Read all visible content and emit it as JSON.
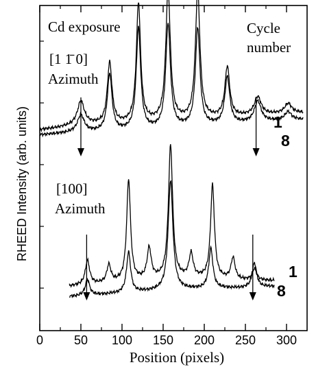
{
  "chart_data": {
    "type": "line",
    "xlabel": "Position (pixels)",
    "ylabel": "RHEED Intensity (arb. units)",
    "xlim": [
      0,
      325
    ],
    "xticks": [
      0,
      50,
      100,
      150,
      200,
      250,
      300
    ],
    "grid": false,
    "y_tick_labels_shown": false,
    "annotations": {
      "top_title": "Cd exposure",
      "top_azimuth_index": "[1 1̄ 0]",
      "top_azimuth_word": "Azimuth",
      "bottom_azimuth_index": "[100]",
      "bottom_azimuth_word": "Azimuth",
      "cycle_header_1": "Cycle",
      "cycle_header_2": "number",
      "top_label_1": "1",
      "top_label_8": "8",
      "bottom_label_1": "1",
      "bottom_label_8": "8"
    },
    "panels": [
      {
        "name": "[1 1̄ 0] Azimuth",
        "baseline_x": [
          0,
          20,
          40,
          60,
          80,
          100,
          120,
          140,
          160,
          180,
          200,
          220,
          240,
          260,
          280,
          300,
          320
        ],
        "baseline_1": [
          0.37,
          0.4,
          0.44,
          0.46,
          0.46,
          0.47,
          0.49,
          0.51,
          0.53,
          0.54,
          0.56,
          0.58,
          0.6,
          0.62,
          0.64,
          0.66,
          0.67
        ],
        "baseline_8": [
          0.28,
          0.3,
          0.32,
          0.33,
          0.34,
          0.35,
          0.37,
          0.38,
          0.4,
          0.42,
          0.44,
          0.46,
          0.48,
          0.5,
          0.52,
          0.54,
          0.55
        ],
        "peaks_1": [
          {
            "x": 50,
            "height": 0.42,
            "width": 5
          },
          {
            "x": 85,
            "height": 1.08,
            "width": 3.4
          },
          {
            "x": 120,
            "height": 2.1,
            "width": 3.1
          },
          {
            "x": 156,
            "height": 2.3,
            "width": 3.3
          },
          {
            "x": 192,
            "height": 2.26,
            "width": 3.3
          },
          {
            "x": 228,
            "height": 0.88,
            "width": 3.5
          },
          {
            "x": 265,
            "height": 0.32,
            "width": 5
          },
          {
            "x": 302,
            "height": 0.17,
            "width": 5
          }
        ],
        "peaks_8": [
          {
            "x": 50,
            "height": 0.3,
            "width": 5
          },
          {
            "x": 85,
            "height": 1.0,
            "width": 3.4
          },
          {
            "x": 120,
            "height": 1.78,
            "width": 3.2
          },
          {
            "x": 156,
            "height": 1.82,
            "width": 3.4
          },
          {
            "x": 192,
            "height": 1.72,
            "width": 3.3
          },
          {
            "x": 228,
            "height": 0.82,
            "width": 3.6
          },
          {
            "x": 265,
            "height": 0.36,
            "width": 5
          },
          {
            "x": 302,
            "height": 0.14,
            "width": 5
          }
        ],
        "arrows_x": [
          50,
          263
        ]
      },
      {
        "name": "[100] Azimuth",
        "baseline_x": [
          36,
          60,
          80,
          100,
          120,
          140,
          160,
          180,
          200,
          220,
          240,
          260,
          285
        ],
        "baseline_1": [
          0.2,
          0.23,
          0.25,
          0.28,
          0.3,
          0.32,
          0.33,
          0.34,
          0.34,
          0.33,
          0.31,
          0.3,
          0.3
        ],
        "baseline_8": [
          0.02,
          0.04,
          0.06,
          0.08,
          0.1,
          0.12,
          0.14,
          0.15,
          0.16,
          0.17,
          0.17,
          0.18,
          0.2
        ],
        "peaks_1": [
          {
            "x": 58,
            "height": 0.42,
            "width": 3.2
          },
          {
            "x": 84,
            "height": 0.31,
            "width": 3
          },
          {
            "x": 108,
            "height": 1.78,
            "width": 2.8
          },
          {
            "x": 133,
            "height": 0.54,
            "width": 3
          },
          {
            "x": 159,
            "height": 2.34,
            "width": 3.1
          },
          {
            "x": 184,
            "height": 0.42,
            "width": 3
          },
          {
            "x": 210,
            "height": 1.64,
            "width": 2.8
          },
          {
            "x": 235,
            "height": 0.38,
            "width": 3
          },
          {
            "x": 261,
            "height": 0.2,
            "width": 3.2
          }
        ],
        "peaks_8": [
          {
            "x": 58,
            "height": 0.28,
            "width": 3.2
          },
          {
            "x": 108,
            "height": 0.71,
            "width": 3
          },
          {
            "x": 159,
            "height": 1.92,
            "width": 3.4
          },
          {
            "x": 208,
            "height": 0.7,
            "width": 3
          },
          {
            "x": 261,
            "height": 0.43,
            "width": 3.2
          }
        ],
        "arrows_x": [
          57,
          259
        ]
      }
    ]
  }
}
